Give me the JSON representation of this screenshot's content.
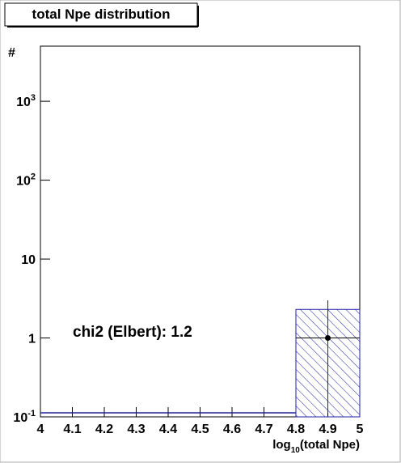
{
  "chart_data": {
    "type": "histogram",
    "title": "total Npe distribution",
    "y_label": "#",
    "x_label": {
      "text": "log",
      "sub": "10",
      "rest": "(total Npe)"
    },
    "annotation": "chi2 (Elbert): 1.2",
    "log_y": true,
    "xlim": [
      4,
      5
    ],
    "xticks": [
      4,
      4.1,
      4.2,
      4.3,
      4.4,
      4.5,
      4.6,
      4.7,
      4.8,
      4.9,
      5
    ],
    "ylim": [
      0.1,
      5000
    ],
    "yticks": [
      {
        "value": 0.1,
        "label": "10",
        "sup": "-1"
      },
      1,
      10,
      {
        "value": 100,
        "label": "10",
        "sup": "2"
      },
      {
        "value": 1000,
        "label": "10",
        "sup": "3"
      }
    ],
    "histogram": {
      "bins": [
        4,
        4.2,
        4.4,
        4.6,
        4.8,
        5.0
      ],
      "counts": [
        0,
        0,
        0,
        0,
        2.3
      ],
      "color": "#2020a0"
    },
    "points": {
      "x": [
        4.9
      ],
      "y": [
        1
      ],
      "xerr": [
        0.1
      ],
      "yerr": [
        2
      ],
      "color": "#000000"
    }
  }
}
